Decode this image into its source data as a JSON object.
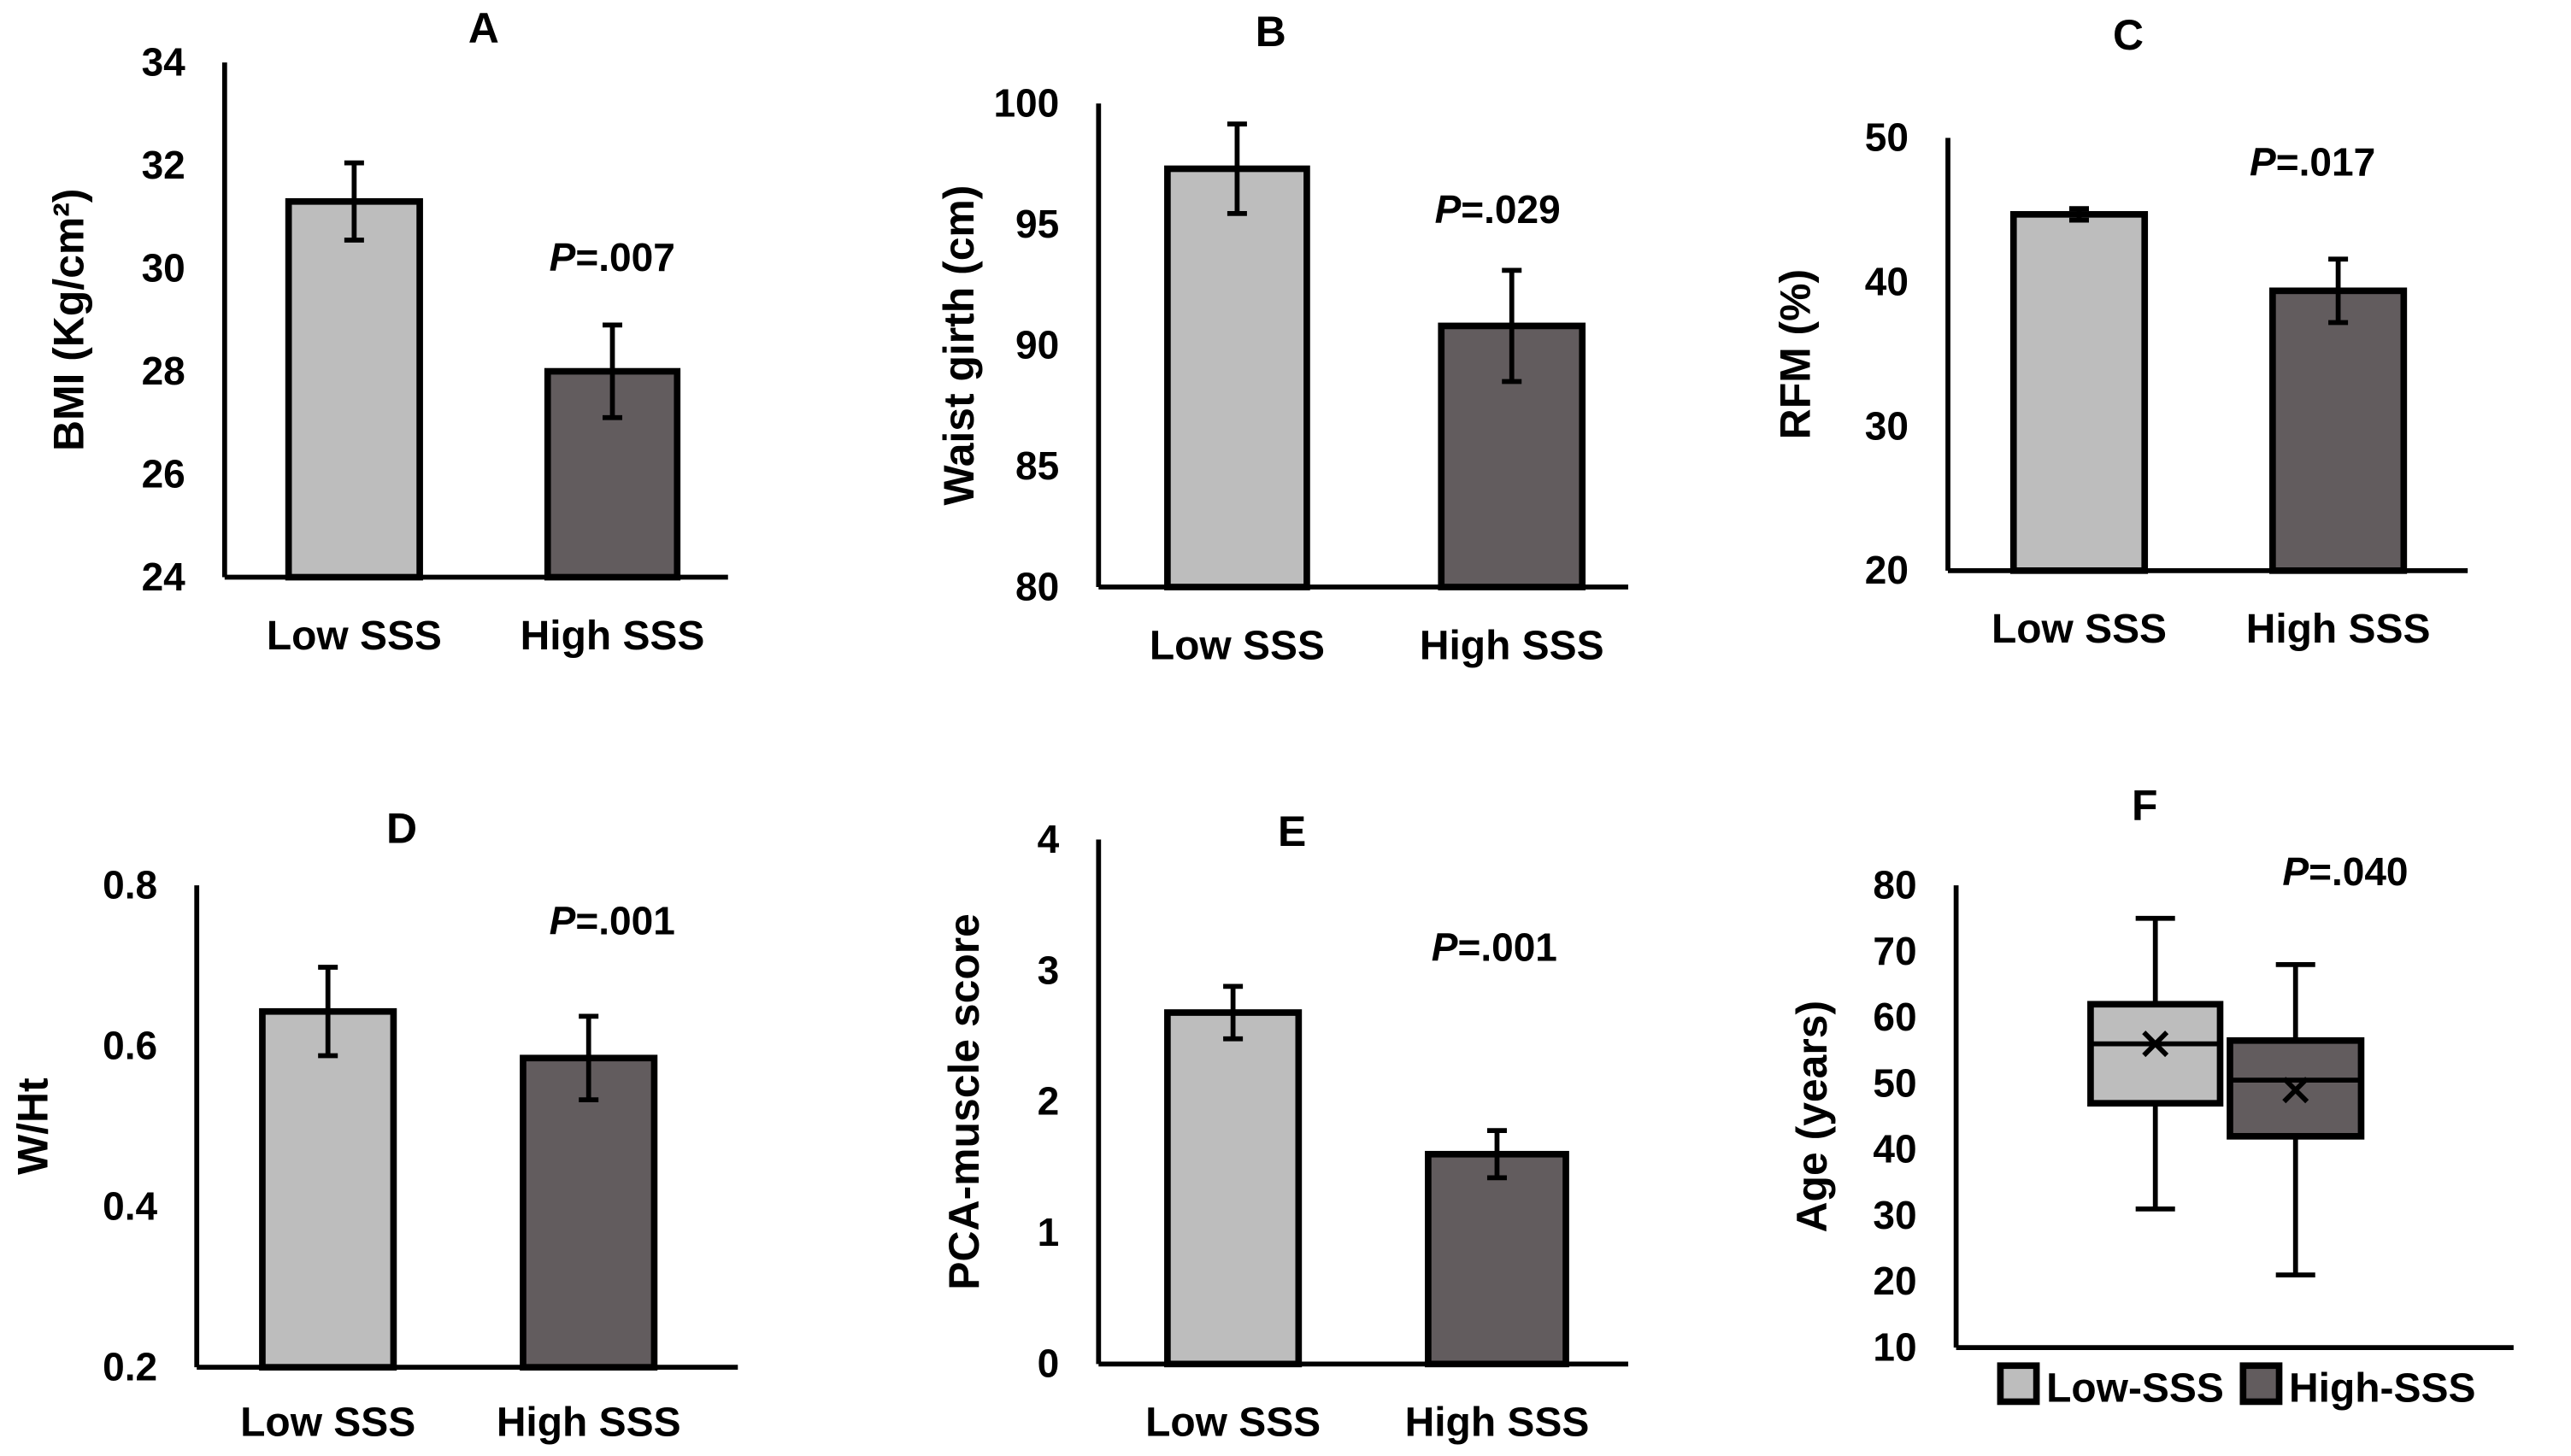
{
  "colors": {
    "low": "#bdbdbd",
    "high": "#625c5e",
    "stroke": "#000000"
  },
  "chart_data": [
    {
      "type": "bar",
      "title": "A",
      "ylabel": "BMI (Kg/cm²)",
      "ylim": [
        24,
        34
      ],
      "yticks": [
        24,
        26,
        28,
        30,
        32,
        34
      ],
      "categories": [
        "Low SSS",
        "High SSS"
      ],
      "values": [
        31.3,
        28.0
      ],
      "errors": [
        0.75,
        0.9
      ],
      "annotation": "=.007",
      "annotation_italic": "P"
    },
    {
      "type": "bar",
      "title": "B",
      "ylabel": "Waist girth (cm)",
      "ylim": [
        80,
        100
      ],
      "yticks": [
        80,
        85,
        90,
        95,
        100
      ],
      "categories": [
        "Low SSS",
        "High SSS"
      ],
      "values": [
        97.3,
        90.8
      ],
      "errors": [
        1.85,
        2.3
      ],
      "annotation": "=.029",
      "annotation_italic": "P"
    },
    {
      "type": "bar",
      "title": "C",
      "ylabel": "RFM (%)",
      "ylim": [
        20,
        50
      ],
      "yticks": [
        20,
        30,
        40,
        50
      ],
      "categories": [
        "Low SSS",
        "High SSS"
      ],
      "values": [
        44.7,
        39.4
      ],
      "errors": [
        0.4,
        2.2
      ],
      "annotation": "=.017",
      "annotation_italic": "P"
    },
    {
      "type": "bar",
      "title": "D",
      "ylabel": "W/Ht",
      "ylim": [
        0.2,
        0.8
      ],
      "yticks": [
        "0.2",
        "0.4",
        "0.6",
        "0.8"
      ],
      "categories": [
        "Low SSS",
        "High SSS"
      ],
      "values": [
        0.643,
        0.585
      ],
      "errors": [
        0.055,
        0.052
      ],
      "annotation": "=.001",
      "annotation_italic": "P"
    },
    {
      "type": "bar",
      "title": "E",
      "ylabel": "PCA-muscle score",
      "ylim": [
        0,
        4
      ],
      "yticks": [
        0,
        1,
        2,
        3,
        4
      ],
      "categories": [
        "Low SSS",
        "High SSS"
      ],
      "values": [
        2.68,
        1.6
      ],
      "errors": [
        0.2,
        0.18
      ],
      "annotation": "=.001",
      "annotation_italic": "P"
    },
    {
      "type": "box",
      "title": "F",
      "ylabel": "Age (years)",
      "ylim": [
        10,
        80
      ],
      "yticks": [
        10,
        20,
        30,
        40,
        50,
        60,
        70,
        80
      ],
      "legend": [
        "Low-SSS",
        "High-SSS"
      ],
      "legend_position": "bottom",
      "boxes": [
        {
          "min": 31,
          "q1": 47,
          "median": 56,
          "q3": 62,
          "max": 75,
          "mean": 56
        },
        {
          "min": 21,
          "q1": 42,
          "median": 50.5,
          "q3": 56.5,
          "max": 68,
          "mean": 49
        }
      ],
      "annotation": "=.040",
      "annotation_italic": "P"
    }
  ]
}
